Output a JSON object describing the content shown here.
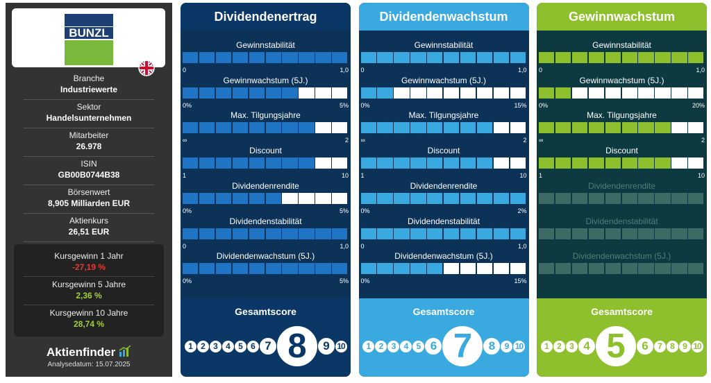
{
  "sidebar": {
    "logo": "BUNZL",
    "info": [
      {
        "label": "Branche",
        "value": "Industriewerte"
      },
      {
        "label": "Sektor",
        "value": "Handelsunternehmen"
      },
      {
        "label": "Mitarbeiter",
        "value": "26.978"
      },
      {
        "label": "ISIN",
        "value": "GB00B0744B38"
      },
      {
        "label": "Börsenwert",
        "value": "8,905 Milliarden EUR"
      },
      {
        "label": "Aktienkurs",
        "value": "26,51 EUR"
      }
    ],
    "performance": [
      {
        "label": "Kursgewinn 1 Jahr",
        "value": "-27,19 %",
        "color": "#e53935"
      },
      {
        "label": "Kursgewinn 5 Jahre",
        "value": "2,36 %",
        "color": "#a3cf3a"
      },
      {
        "label": "Kursgewinn 10 Jahre",
        "value": "28,74 %",
        "color": "#a3cf3a"
      }
    ],
    "brand": "Aktienfinder",
    "analysis_date": "Analysedatum: 15.07.2025"
  },
  "segments": 10,
  "score_title": "Gesamtscore",
  "score_scale": [
    1,
    2,
    3,
    4,
    5,
    6,
    7,
    8,
    9,
    10
  ],
  "cards": [
    {
      "title": "Dividendenertrag",
      "header": "#0a3766",
      "body": "#0c3257",
      "accent": "#1f75c4",
      "score": 8,
      "metrics": [
        {
          "label": "Gewinnstabilität",
          "filled": 10,
          "min": "0",
          "max": "1,0"
        },
        {
          "label": "Gewinnwachstum (5J.)",
          "filled": 7,
          "min": "0%",
          "max": "5%"
        },
        {
          "label": "Max. Tilgungsjahre",
          "filled": 8,
          "min": "∞",
          "max": "2"
        },
        {
          "label": "Discount",
          "filled": 8,
          "min": "1",
          "max": "10"
        },
        {
          "label": "Dividendenrendite",
          "filled": 6,
          "min": "0%",
          "max": "5%"
        },
        {
          "label": "Dividendenstabilität",
          "filled": 10,
          "min": "0",
          "max": "1,0"
        },
        {
          "label": "Dividendenwachstum (5J.)",
          "filled": 10,
          "min": "0%",
          "max": "5%"
        }
      ]
    },
    {
      "title": "Dividendenwachstum",
      "header": "#3aa9df",
      "body": "#0c3257",
      "accent": "#3aa9df",
      "score": 7,
      "metrics": [
        {
          "label": "Gewinnstabilität",
          "filled": 10,
          "min": "0",
          "max": "1,0"
        },
        {
          "label": "Gewinnwachstum (5J.)",
          "filled": 2,
          "min": "0%",
          "max": "15%"
        },
        {
          "label": "Max. Tilgungsjahre",
          "filled": 8,
          "min": "∞",
          "max": "2"
        },
        {
          "label": "Discount",
          "filled": 8,
          "min": "1",
          "max": "10"
        },
        {
          "label": "Dividendenrendite",
          "filled": 10,
          "min": "0%",
          "max": "2%"
        },
        {
          "label": "Dividendenstabilität",
          "filled": 10,
          "min": "0",
          "max": "1,0"
        },
        {
          "label": "Dividendenwachstum (5J.)",
          "filled": 5,
          "min": "0%",
          "max": "15%"
        }
      ]
    },
    {
      "title": "Gewinnwachstum",
      "header": "#8ec02d",
      "body": "#0d3a40",
      "accent": "#8ec02d",
      "score": 5,
      "metrics": [
        {
          "label": "Gewinnstabilität",
          "filled": 10,
          "min": "0",
          "max": "1,0"
        },
        {
          "label": "Gewinnwachstum (5J.)",
          "filled": 2,
          "min": "0%",
          "max": "20%"
        },
        {
          "label": "Max. Tilgungsjahre",
          "filled": 8,
          "min": "∞",
          "max": "2"
        },
        {
          "label": "Discount",
          "filled": 8,
          "min": "1",
          "max": "10"
        },
        {
          "label": "Dividendenrendite",
          "disabled": true
        },
        {
          "label": "Dividendenstabilität",
          "disabled": true
        },
        {
          "label": "Dividendenwachstum (5J.)",
          "disabled": true
        }
      ]
    }
  ]
}
